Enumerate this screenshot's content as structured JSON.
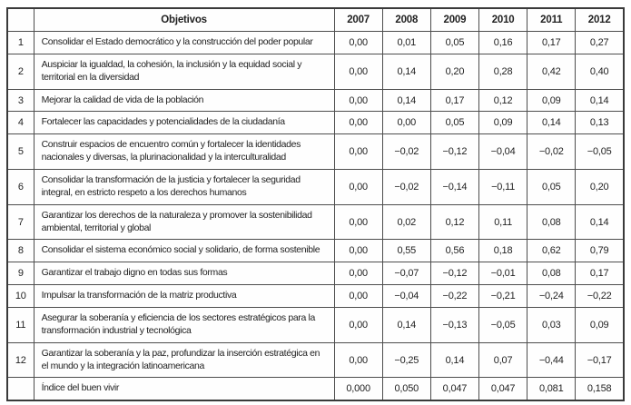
{
  "table": {
    "corner_label": "",
    "objectives_header": "Objetivos",
    "year_headers": [
      "2007",
      "2008",
      "2009",
      "2010",
      "2011",
      "2012"
    ],
    "rows": [
      {
        "num": "1",
        "objective": "Consolidar el Estado democrático y la construcción del poder popular",
        "values": [
          "0,00",
          "0,01",
          "0,05",
          "0,16",
          "0,17",
          "0,27"
        ]
      },
      {
        "num": "2",
        "objective": "Auspiciar la igualdad, la cohesión, la inclusión y la equidad social y territorial en la diversidad",
        "values": [
          "0,00",
          "0,14",
          "0,20",
          "0,28",
          "0,42",
          "0,40"
        ]
      },
      {
        "num": "3",
        "objective": "Mejorar la calidad de vida de la población",
        "values": [
          "0,00",
          "0,14",
          "0,17",
          "0,12",
          "0,09",
          "0,14"
        ]
      },
      {
        "num": "4",
        "objective": "Fortalecer las capacidades y potencialidades de la ciudadanía",
        "values": [
          "0,00",
          "0,00",
          "0,05",
          "0,09",
          "0,14",
          "0,13"
        ]
      },
      {
        "num": "5",
        "objective": "Construir espacios de encuentro común y fortalecer la identidades nacionales y diversas, la plurinacionalidad y la interculturalidad",
        "values": [
          "0,00",
          "−0,02",
          "−0,12",
          "−0,04",
          "−0,02",
          "−0,05"
        ]
      },
      {
        "num": "6",
        "objective": "Consolidar la transformación de la justicia y fortalecer la seguridad integral, en estricto respeto a los derechos humanos",
        "values": [
          "0,00",
          "−0,02",
          "−0,14",
          "−0,11",
          "0,05",
          "0,20"
        ]
      },
      {
        "num": "7",
        "objective": "Garantizar los derechos de la naturaleza y promover la sostenibilidad ambiental, territorial y global",
        "values": [
          "0,00",
          "0,02",
          "0,12",
          "0,11",
          "0,08",
          "0,14"
        ]
      },
      {
        "num": "8",
        "objective": "Consolidar el sistema económico social y solidario, de forma sostenible",
        "values": [
          "0,00",
          "0,55",
          "0,56",
          "0,18",
          "0,62",
          "0,79"
        ]
      },
      {
        "num": "9",
        "objective": "Garantizar el trabajo digno en todas sus formas",
        "values": [
          "0,00",
          "−0,07",
          "−0,12",
          "−0,01",
          "0,08",
          "0,17"
        ]
      },
      {
        "num": "10",
        "objective": "Impulsar la transformación de la matriz productiva",
        "values": [
          "0,00",
          "−0,04",
          "−0,22",
          "−0,21",
          "−0,24",
          "−0,22"
        ]
      },
      {
        "num": "11",
        "objective": "Asegurar la soberanía y eficiencia de los sectores estratégicos para la transformación industrial y tecnológica",
        "values": [
          "0,00",
          "0,14",
          "−0,13",
          "−0,05",
          "0,03",
          "0,09"
        ]
      },
      {
        "num": "12",
        "objective": "Garantizar la soberanía y la paz, profundizar la inserción estratégica en el mundo y la integración latinoamericana",
        "values": [
          "0,00",
          "−0,25",
          "0,14",
          "0,07",
          "−0,44",
          "−0,17"
        ]
      }
    ],
    "summary_row": {
      "num": "",
      "label": "Índice del buen vivir",
      "values": [
        "0,000",
        "0,050",
        "0,047",
        "0,047",
        "0,081",
        "0,158"
      ]
    }
  }
}
